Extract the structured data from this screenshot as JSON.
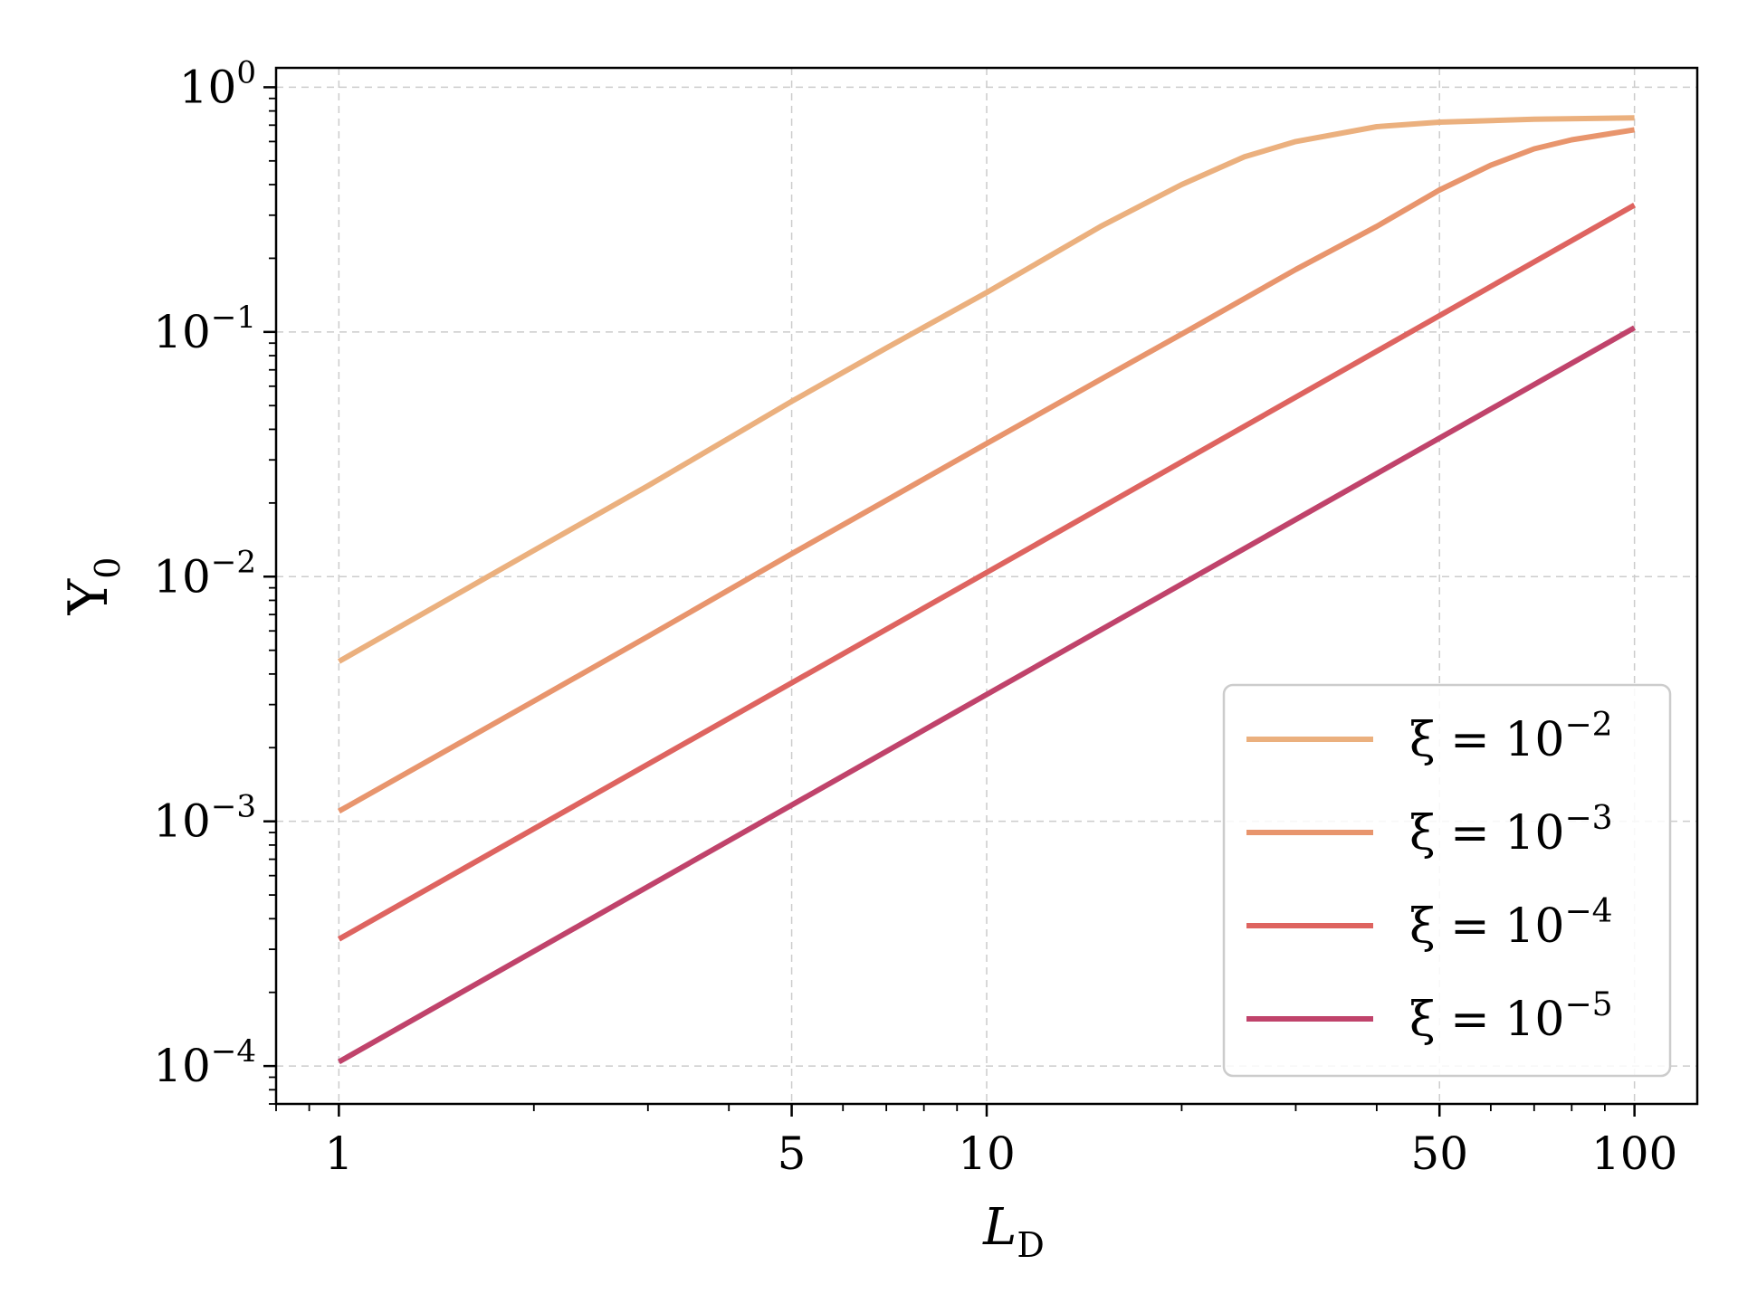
{
  "chart_data": {
    "type": "line",
    "xlabel": "L_D",
    "ylabel": "Υ_0",
    "xscale": "log",
    "yscale": "log",
    "xlim": [
      0.8,
      125
    ],
    "ylim": [
      7e-05,
      1.2
    ],
    "grid": true,
    "legend_position": "lower-right",
    "x_ticks": [
      {
        "value": 1,
        "label": "1"
      },
      {
        "value": 5,
        "label": "5"
      },
      {
        "value": 10,
        "label": "10"
      },
      {
        "value": 50,
        "label": "50"
      },
      {
        "value": 100,
        "label": "100"
      }
    ],
    "y_ticks": [
      {
        "value": 1,
        "base": "10",
        "exp": "0"
      },
      {
        "value": 0.1,
        "base": "10",
        "exp": "−1"
      },
      {
        "value": 0.01,
        "base": "10",
        "exp": "−2"
      },
      {
        "value": 0.001,
        "base": "10",
        "exp": "−3"
      },
      {
        "value": 0.0001,
        "base": "10",
        "exp": "−4"
      }
    ],
    "series": [
      {
        "legend_prefix": "ξ = 10",
        "legend_exp": "−2",
        "color": "#EBB07E",
        "x": [
          1,
          2,
          3,
          5,
          7,
          10,
          15,
          20,
          25,
          30,
          40,
          50,
          70,
          100
        ],
        "y": [
          0.0045,
          0.0128,
          0.0235,
          0.052,
          0.086,
          0.145,
          0.27,
          0.4,
          0.52,
          0.6,
          0.69,
          0.72,
          0.74,
          0.75
        ]
      },
      {
        "legend_prefix": "ξ = 10",
        "legend_exp": "−3",
        "color": "#E8956D",
        "x": [
          1,
          2,
          3,
          5,
          7,
          10,
          15,
          20,
          30,
          40,
          50,
          60,
          70,
          80,
          100
        ],
        "y": [
          0.0011,
          0.0031,
          0.0057,
          0.0124,
          0.0205,
          0.035,
          0.064,
          0.098,
          0.18,
          0.27,
          0.38,
          0.48,
          0.56,
          0.61,
          0.67
        ]
      },
      {
        "legend_prefix": "ξ = 10",
        "legend_exp": "−4",
        "color": "#DE6460",
        "x": [
          1,
          10,
          100
        ],
        "y": [
          0.00033,
          0.0104,
          0.33
        ]
      },
      {
        "legend_prefix": "ξ = 10",
        "legend_exp": "−5",
        "color": "#C0436B",
        "x": [
          1,
          10,
          100
        ],
        "y": [
          0.000104,
          0.0033,
          0.104
        ]
      }
    ]
  }
}
